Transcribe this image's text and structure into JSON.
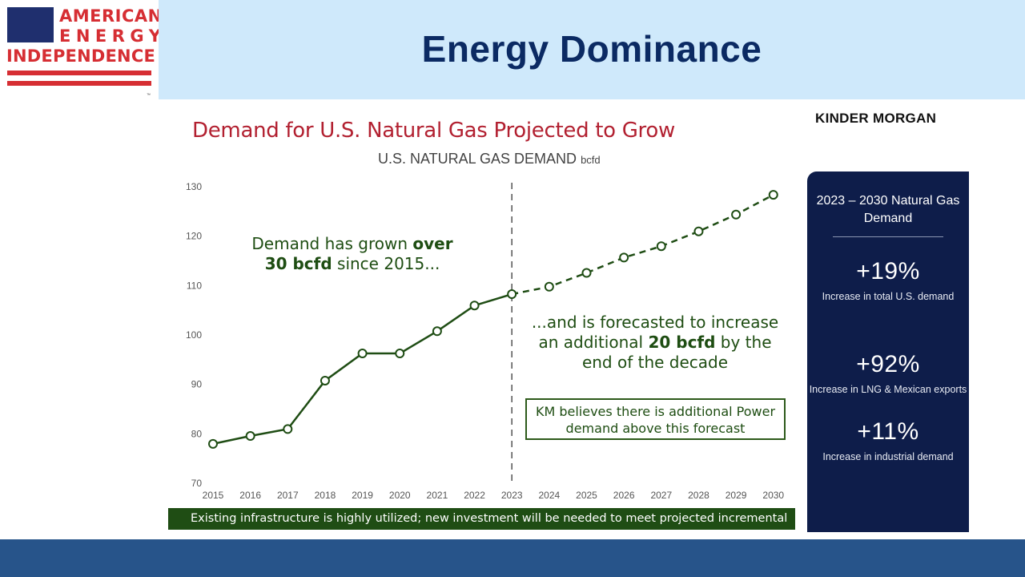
{
  "header": {
    "title": "Energy Dominance",
    "logo_lines": [
      "AMERICAN",
      "ENERGY",
      "INDEPENDENCE"
    ],
    "logo_tm": "™"
  },
  "slide": {
    "company_logo": "KINDER MORGAN",
    "notes": {
      "left_text_1": "Demand has grown ",
      "left_bold_1": "over 30 bcfd",
      "left_text_2": " since 2015...",
      "right_text_1": "...and is forecasted to increase an additional ",
      "right_bold_1": "20 bcfd",
      "right_text_2": " by the end of the decade"
    },
    "km_box": "KM believes there is additional Power demand above this forecast",
    "footer": "Existing infrastructure is highly utilized; new investment will be needed to meet projected incremental demand"
  },
  "side_panel": {
    "heading": "2023 – 2030 Natural Gas Demand",
    "stats": [
      {
        "value": "+19%",
        "label": "Increase in total U.S. demand"
      },
      {
        "value": "+92%",
        "label": "Increase in LNG & Mexican exports"
      },
      {
        "value": "+11%",
        "label": "Increase in industrial demand"
      }
    ]
  },
  "colors": {
    "header_bg": "#cfe9fb",
    "title": "#0b2a63",
    "chart_title": "#b22030",
    "series": "#1f4d14",
    "panel_bg": "#0e1d4a",
    "bottom_bar": "#27548a",
    "brand_red": "#d62e33"
  },
  "chart_data": {
    "type": "line",
    "title": "Demand for U.S. Natural Gas Projected to Grow",
    "subtitle": "U.S. NATURAL GAS DEMAND",
    "unit": "bcfd",
    "xlabel": "",
    "ylabel": "",
    "categories": [
      "2015",
      "2016",
      "2017",
      "2018",
      "2019",
      "2020",
      "2021",
      "2022",
      "2023",
      "2024",
      "2025",
      "2026",
      "2027",
      "2028",
      "2029",
      "2030"
    ],
    "values": [
      77.8,
      79.4,
      80.8,
      90.6,
      96.1,
      96.1,
      100.6,
      105.8,
      108.1,
      109.6,
      112.4,
      115.5,
      117.8,
      120.8,
      124.2,
      128.2
    ],
    "actual_through": "2023",
    "forecast_from": "2023",
    "divider_at": "2023",
    "yticks": [
      70,
      80,
      90,
      100,
      110,
      120,
      130
    ],
    "ylim": [
      70,
      130
    ],
    "grid": false,
    "legend": "none"
  }
}
